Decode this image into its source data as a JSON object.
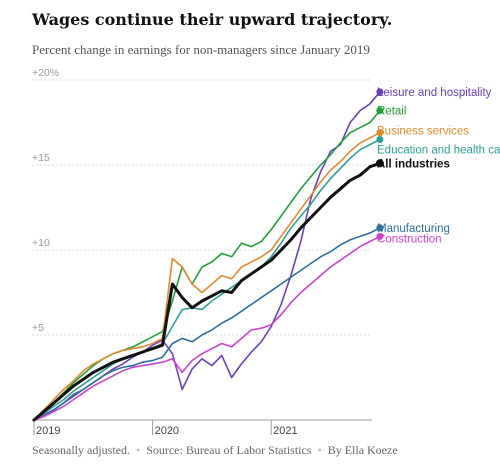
{
  "chart_data": {
    "type": "line",
    "title": "Wages continue their upward trajectory.",
    "subtitle": "Percent change in earnings for non-managers since January 2019",
    "ylim": [
      0,
      20
    ],
    "yticks": [
      {
        "value": 20,
        "label": "+20%"
      },
      {
        "value": 15,
        "label": "+15"
      },
      {
        "value": 10,
        "label": "+10"
      },
      {
        "value": 5,
        "label": "+5"
      }
    ],
    "x_start": "2019-01",
    "x_end": "2021-11",
    "xticks": [
      "2019",
      "2020",
      "2021"
    ],
    "grid": true,
    "legend": "direct labels at line ends",
    "series": [
      {
        "name": "Leisure and hospitality",
        "color": "#6a3fc1",
        "values": [
          0,
          0.3,
          0.6,
          1.0,
          1.5,
          1.8,
          2.2,
          2.6,
          3.0,
          3.3,
          3.7,
          4.0,
          4.4,
          4.7,
          3.9,
          1.8,
          3.0,
          3.6,
          3.2,
          3.8,
          2.5,
          3.3,
          4.0,
          4.6,
          5.5,
          6.8,
          8.5,
          10.5,
          13.0,
          14.6,
          15.8,
          16.2,
          17.5,
          18.2,
          18.6,
          19.3
        ]
      },
      {
        "name": "Retail",
        "color": "#22a23a",
        "values": [
          0,
          0.5,
          1.0,
          1.6,
          2.2,
          2.7,
          3.2,
          3.6,
          3.9,
          4.1,
          4.3,
          4.6,
          4.9,
          5.2,
          7.0,
          9.0,
          8.0,
          9.0,
          9.3,
          9.8,
          9.6,
          10.4,
          10.2,
          10.5,
          11.2,
          12.0,
          12.8,
          13.6,
          14.3,
          15.0,
          15.6,
          16.3,
          16.9,
          17.2,
          17.5,
          18.2
        ]
      },
      {
        "name": "Business services",
        "color": "#e08a2a",
        "values": [
          0,
          0.6,
          1.2,
          1.8,
          2.3,
          2.9,
          3.3,
          3.6,
          3.9,
          4.1,
          4.2,
          4.3,
          4.5,
          4.8,
          9.5,
          9.0,
          8.0,
          7.5,
          8.0,
          8.5,
          8.3,
          9.0,
          9.3,
          9.6,
          10.0,
          10.8,
          11.6,
          12.4,
          13.2,
          14.0,
          14.7,
          15.2,
          15.8,
          16.3,
          16.6,
          16.9
        ]
      },
      {
        "name": "Education and health care",
        "color": "#2aa198",
        "values": [
          0,
          0.4,
          0.8,
          1.2,
          1.7,
          2.1,
          2.5,
          2.9,
          3.3,
          3.6,
          3.8,
          4.0,
          4.2,
          4.5,
          5.5,
          6.5,
          6.6,
          6.5,
          7.0,
          7.4,
          7.8,
          8.2,
          8.6,
          9.0,
          9.6,
          10.4,
          11.3,
          12.0,
          12.7,
          13.5,
          14.2,
          14.8,
          15.4,
          15.9,
          16.2,
          16.5
        ]
      },
      {
        "name": "All industries",
        "color": "#111111",
        "values": [
          0,
          0.5,
          1.0,
          1.5,
          2.0,
          2.4,
          2.8,
          3.1,
          3.4,
          3.6,
          3.8,
          4.0,
          4.2,
          4.4,
          8.0,
          7.2,
          6.6,
          7.0,
          7.3,
          7.6,
          7.5,
          8.2,
          8.6,
          9.0,
          9.4,
          10.0,
          10.6,
          11.3,
          11.9,
          12.5,
          13.1,
          13.6,
          14.1,
          14.4,
          14.9,
          15.1
        ]
      },
      {
        "name": "Manufacturing",
        "color": "#2b6ea0",
        "values": [
          0,
          0.3,
          0.6,
          1.0,
          1.4,
          1.8,
          2.2,
          2.6,
          2.9,
          3.1,
          3.2,
          3.4,
          3.5,
          3.7,
          4.5,
          4.8,
          4.6,
          5.0,
          5.3,
          5.7,
          6.0,
          6.4,
          6.8,
          7.2,
          7.6,
          8.0,
          8.4,
          8.8,
          9.2,
          9.6,
          9.9,
          10.3,
          10.6,
          10.8,
          11.0,
          11.3
        ]
      },
      {
        "name": "Construction",
        "color": "#cc44cc",
        "values": [
          0,
          0.2,
          0.5,
          0.8,
          1.2,
          1.6,
          2.0,
          2.3,
          2.6,
          2.9,
          3.1,
          3.2,
          3.3,
          3.4,
          3.6,
          2.8,
          3.5,
          3.9,
          4.2,
          4.5,
          4.3,
          4.8,
          5.3,
          5.4,
          5.6,
          6.2,
          6.9,
          7.5,
          8.0,
          8.5,
          9.0,
          9.4,
          9.8,
          10.2,
          10.5,
          10.8
        ]
      }
    ]
  },
  "footer": {
    "note": "Seasonally adjusted.",
    "source": "Source: Bureau of Labor Statistics",
    "byline": "By Ella Koeze"
  }
}
